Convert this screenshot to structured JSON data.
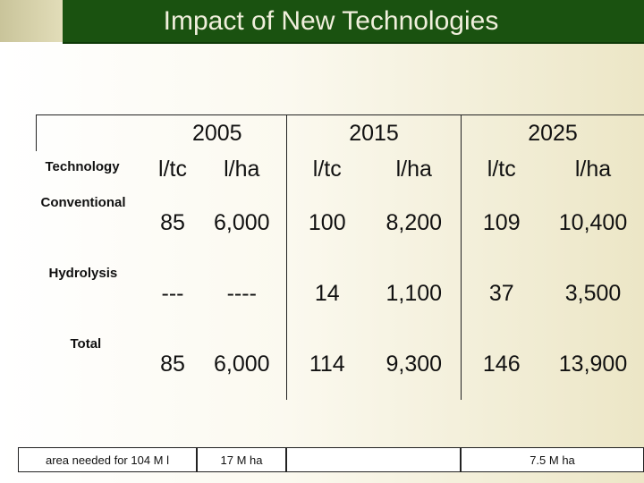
{
  "title": "Impact of New Technologies",
  "years": [
    "2005",
    "2015",
    "2025"
  ],
  "header": {
    "technology": "Technology",
    "units": [
      "l/tc",
      "l/ha",
      "l/tc",
      "l/ha",
      "l/tc",
      "l/ha"
    ]
  },
  "rows": [
    {
      "label": "Conventional",
      "values": [
        "85",
        "6,000",
        "100",
        "8,200",
        "109",
        "10,400"
      ]
    },
    {
      "label": "Hydrolysis",
      "values": [
        "---",
        "----",
        "14",
        "1,100",
        "37",
        "3,500"
      ]
    },
    {
      "label": "Total",
      "values": [
        "85",
        "6,000",
        "114",
        "9,300",
        "146",
        "13,900"
      ]
    }
  ],
  "footer": {
    "area_label": "area needed for 104 M l",
    "v2005": "17 M ha",
    "v2015": "",
    "v2025": "7.5 M ha"
  }
}
